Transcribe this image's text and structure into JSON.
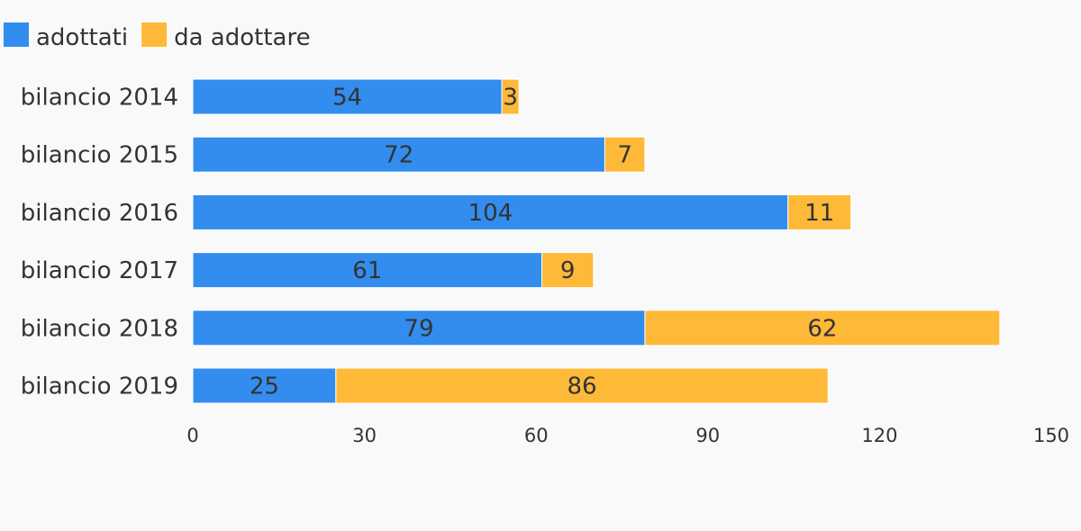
{
  "chart_data": {
    "type": "bar",
    "orientation": "horizontal",
    "stacked": true,
    "categories": [
      "bilancio 2014",
      "bilancio 2015",
      "bilancio 2016",
      "bilancio 2017",
      "bilancio 2018",
      "bilancio 2019"
    ],
    "series": [
      {
        "name": "adottati",
        "color": "#338dee",
        "values": [
          54,
          72,
          104,
          61,
          79,
          25
        ]
      },
      {
        "name": "da adottare",
        "color": "#ffb938",
        "values": [
          3,
          7,
          11,
          9,
          62,
          86
        ]
      }
    ],
    "title": "",
    "xlabel": "",
    "ylabel": "",
    "xlim": [
      0,
      150
    ],
    "xticks": [
      0,
      30,
      60,
      90,
      120,
      150
    ],
    "grid": false,
    "legend_position": "top-left",
    "data_labels": true
  }
}
